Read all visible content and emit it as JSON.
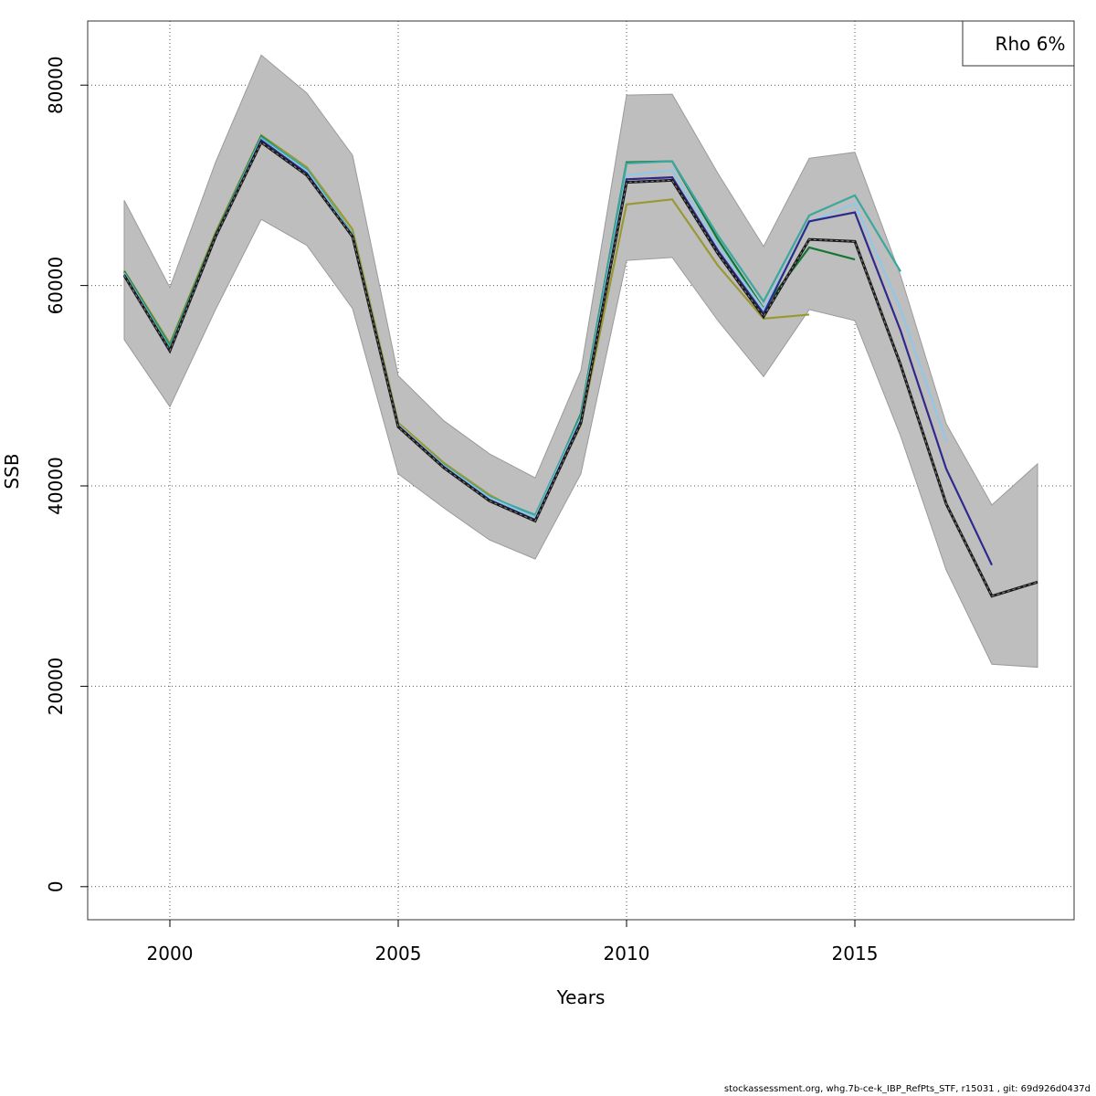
{
  "chart_data": {
    "type": "line",
    "xlabel": "Years",
    "ylabel": "SSB",
    "xlim": [
      1998.2,
      2019.8
    ],
    "ylim": [
      -3300,
      86400
    ],
    "x_ticks": [
      2000,
      2005,
      2010,
      2015
    ],
    "y_ticks": [
      0,
      20000,
      40000,
      60000,
      80000
    ],
    "grid": true,
    "legend": {
      "placement": "top-right",
      "text": "Rho 6%"
    },
    "band": {
      "color": "#bebebe",
      "x": [
        1999,
        2000,
        2001,
        2002,
        2003,
        2004,
        2005,
        2006,
        2007,
        2008,
        2009,
        2010,
        2011,
        2012,
        2013,
        2014,
        2015,
        2016,
        2017,
        2018,
        2019
      ],
      "upper": [
        68500,
        59800,
        72300,
        83000,
        79200,
        73000,
        51000,
        46500,
        43200,
        40800,
        51500,
        79000,
        79100,
        71200,
        63900,
        72700,
        73300,
        61000,
        46200,
        38100,
        42200
      ],
      "lower": [
        54600,
        47900,
        57600,
        66600,
        64000,
        57700,
        41200,
        37800,
        34600,
        32700,
        41200,
        62500,
        62800,
        56500,
        50900,
        57600,
        56500,
        45000,
        31600,
        22200,
        21900
      ]
    },
    "series": [
      {
        "color": "#1a1a1a",
        "dashed": true,
        "x": [
          1999,
          2000,
          2001,
          2002,
          2003,
          2004,
          2005,
          2006,
          2007,
          2008,
          2009,
          2010,
          2011,
          2012,
          2013,
          2014,
          2015,
          2016,
          2017,
          2018,
          2019
        ],
        "values": [
          61000,
          53500,
          64900,
          74300,
          71000,
          64900,
          45900,
          41800,
          38500,
          36500,
          46300,
          70300,
          70500,
          63200,
          56900,
          64600,
          64400,
          52100,
          38200,
          29000,
          30400
        ]
      },
      {
        "color": "#2d2a8c",
        "x": [
          1999,
          2000,
          2001,
          2002,
          2003,
          2004,
          2005,
          2006,
          2007,
          2008,
          2009,
          2010,
          2011,
          2012,
          2013,
          2014,
          2015,
          2016,
          2017,
          2018
        ],
        "values": [
          61100,
          53400,
          64800,
          74500,
          71200,
          64800,
          46000,
          41900,
          38600,
          36600,
          46500,
          70600,
          70800,
          63500,
          57200,
          66400,
          67300,
          55500,
          41700,
          32100
        ]
      },
      {
        "color": "#8fc8e8",
        "x": [
          1999,
          2000,
          2001,
          2002,
          2003,
          2004,
          2005,
          2006,
          2007,
          2008,
          2009,
          2010,
          2011,
          2012,
          2013,
          2014,
          2015,
          2016,
          2017
        ],
        "values": [
          61200,
          53600,
          64900,
          74600,
          71400,
          65000,
          46100,
          42000,
          38800,
          36800,
          46700,
          71000,
          71500,
          64000,
          57600,
          66300,
          68200,
          57600,
          44500
        ]
      },
      {
        "color": "#3aa89f",
        "x": [
          1999,
          2000,
          2001,
          2002,
          2003,
          2004,
          2005,
          2006,
          2007,
          2008,
          2009,
          2010,
          2011,
          2012,
          2013,
          2014,
          2015,
          2016
        ],
        "values": [
          61300,
          53900,
          65000,
          74800,
          71600,
          65100,
          46000,
          42100,
          38900,
          37100,
          47000,
          72200,
          72400,
          65000,
          58400,
          67000,
          69000,
          61400
        ]
      },
      {
        "color": "#117733",
        "x": [
          1999,
          2000,
          2001,
          2002,
          2003,
          2004,
          2005,
          2006,
          2007,
          2008,
          2009,
          2010,
          2011,
          2012,
          2013,
          2014,
          2015
        ],
        "values": [
          61400,
          54000,
          65100,
          74900,
          71500,
          65000,
          45900,
          41900,
          38800,
          36800,
          47200,
          72300,
          72400,
          64600,
          57700,
          63800,
          62600
        ]
      },
      {
        "color": "#999933",
        "x": [
          1999,
          2000,
          2001,
          2002,
          2003,
          2004,
          2005,
          2006,
          2007,
          2008,
          2009,
          2010,
          2011,
          2012,
          2013,
          2014
        ],
        "values": [
          61500,
          54200,
          65300,
          75000,
          71800,
          65600,
          46300,
          42300,
          39100,
          36700,
          46100,
          68100,
          68600,
          62000,
          56700,
          57100
        ]
      }
    ]
  },
  "footer": "stockassessment.org, whg.7b-ce-k_IBP_RefPts_STF, r15031 , git: 69d926d0437d"
}
